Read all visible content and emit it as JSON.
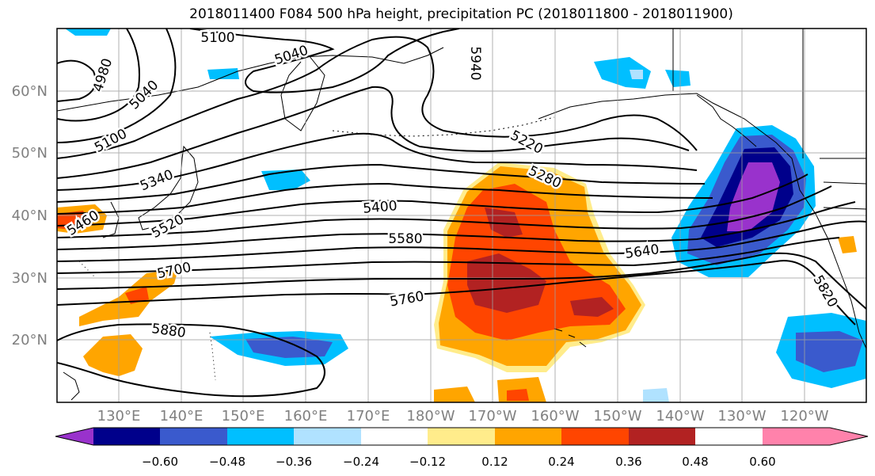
{
  "title": "2018011400 F084 500 hPa height, precipitation PC (2018011800 - 2018011900)",
  "lat_labels": [
    "60°N",
    "50°N",
    "40°N",
    "30°N",
    "20°N"
  ],
  "lon_labels": [
    "130°E",
    "140°E",
    "150°E",
    "160°E",
    "170°E",
    "180°W",
    "170°W",
    "160°W",
    "150°W",
    "140°W",
    "130°W",
    "120°W"
  ],
  "contour_labels": [
    {
      "text": "5100",
      "rot": 0
    },
    {
      "text": "5040",
      "rot": -18
    },
    {
      "text": "4980",
      "rot": -72
    },
    {
      "text": "5040",
      "rot": -45
    },
    {
      "text": "5100",
      "rot": -28
    },
    {
      "text": "5340",
      "rot": -22
    },
    {
      "text": "5460",
      "rot": -32
    },
    {
      "text": "5520",
      "rot": -28
    },
    {
      "text": "5700",
      "rot": -12
    },
    {
      "text": "5880",
      "rot": 8
    },
    {
      "text": "5400",
      "rot": -5
    },
    {
      "text": "5580",
      "rot": 0
    },
    {
      "text": "5760",
      "rot": -10
    },
    {
      "text": "5220",
      "rot": 28
    },
    {
      "text": "5280",
      "rot": 25
    },
    {
      "text": "5640",
      "rot": -8
    },
    {
      "text": "5820",
      "rot": 60
    },
    {
      "text": "5940",
      "rot": 90
    }
  ],
  "colorbar": {
    "ticks": [
      "−0.60",
      "−0.48",
      "−0.36",
      "−0.24",
      "−0.12",
      "0.12",
      "0.24",
      "0.36",
      "0.48",
      "0.60"
    ],
    "colors": [
      "#9932cc",
      "#00008b",
      "#3a5acd",
      "#00bfff",
      "#b0e2ff",
      "#ffffff",
      "#ffec8b",
      "#ffa500",
      "#ff4500",
      "#b22222",
      "#ff82ab"
    ]
  },
  "fill_colors": {
    "pos1": "#ffec8b",
    "pos2": "#ffa500",
    "pos3": "#ff4500",
    "pos4": "#b22222",
    "neg1": "#b0e2ff",
    "neg2": "#00bfff",
    "neg3": "#3a5acd",
    "neg4": "#00008b",
    "neg5": "#9932cc"
  }
}
